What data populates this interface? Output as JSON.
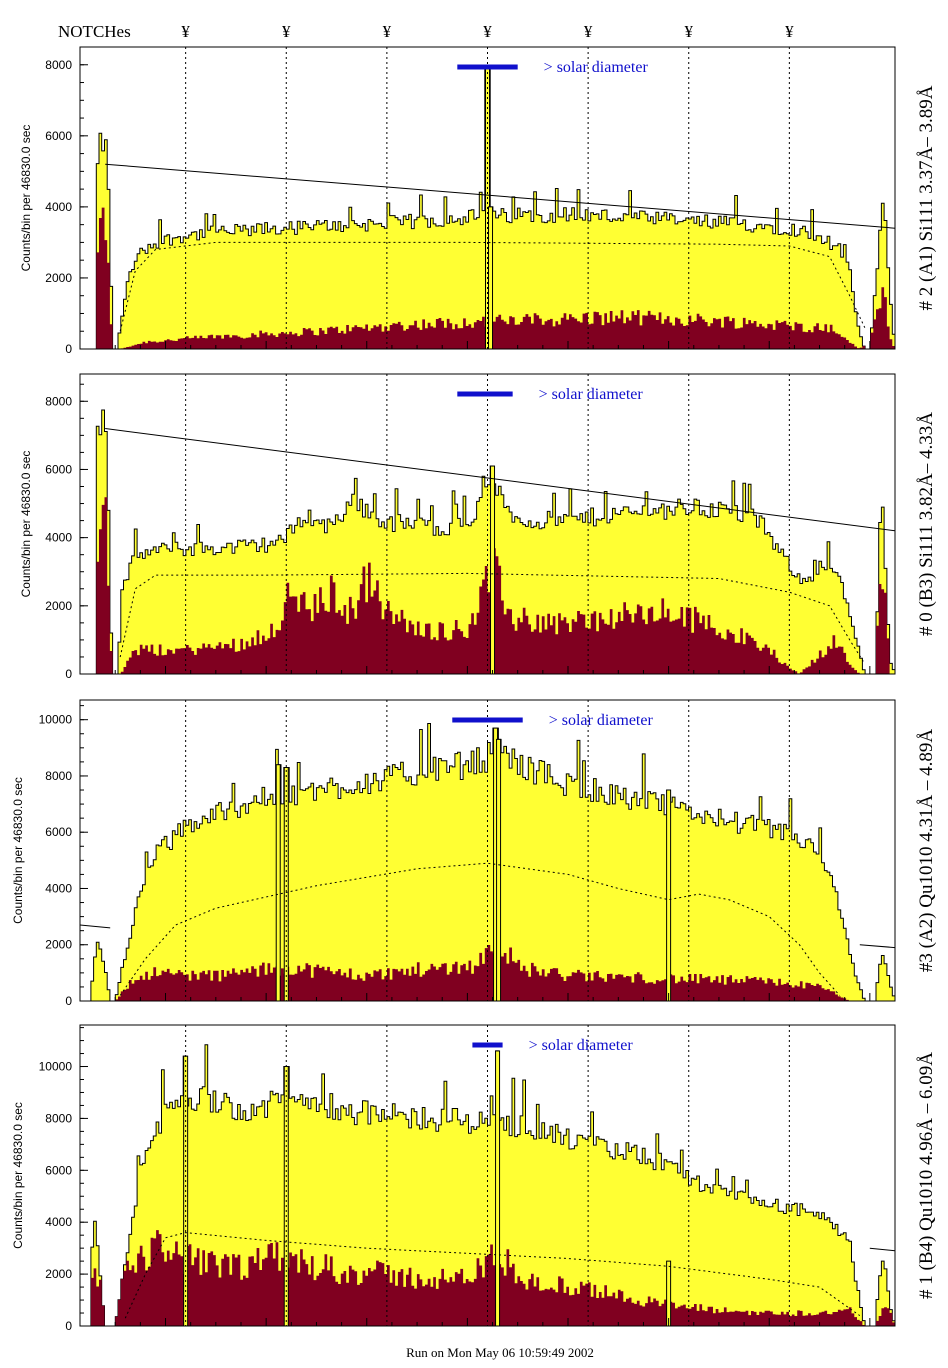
{
  "header": {
    "notches_label": "NOTCHes",
    "notch_symbol": "¥",
    "notch_positions": [
      1.2,
      2.2,
      3.2,
      4.2,
      5.2,
      6.2,
      7.2
    ]
  },
  "footer": {
    "run_text": "Run on Mon May 06 10:59:49 2002"
  },
  "colors": {
    "total": "#ffff33",
    "component": "#800020",
    "solar_bar": "#1010cc"
  },
  "chart_data": [
    {
      "type": "bar",
      "panel_label": "# 2 (A1) Si111  3.37Å– 3.89Å",
      "ylabel": "Counts/bin per  46830.0 sec",
      "solar_label": "> solar diameter",
      "solar_bar": [
        3.9,
        4.5
      ],
      "ylim": [
        0,
        8500
      ],
      "yticks": [
        0,
        2000,
        4000,
        6000,
        8000
      ],
      "xlim": [
        0.15,
        8.25
      ],
      "total_profile": [
        [
          0.15,
          0
        ],
        [
          0.3,
          0
        ],
        [
          0.32,
          5000
        ],
        [
          0.36,
          5900
        ],
        [
          0.42,
          5600
        ],
        [
          0.48,
          0
        ],
        [
          0.52,
          0
        ],
        [
          0.58,
          1200
        ],
        [
          0.65,
          2200
        ],
        [
          0.75,
          2700
        ],
        [
          0.9,
          3000
        ],
        [
          1.2,
          3200
        ],
        [
          1.6,
          3300
        ],
        [
          2.2,
          3400
        ],
        [
          2.9,
          3500
        ],
        [
          3.6,
          3600
        ],
        [
          3.9,
          3700
        ],
        [
          4.4,
          3750
        ],
        [
          5.0,
          3800
        ],
        [
          5.6,
          3700
        ],
        [
          6.2,
          3600
        ],
        [
          6.8,
          3500
        ],
        [
          7.2,
          3400
        ],
        [
          7.5,
          3200
        ],
        [
          7.7,
          2800
        ],
        [
          7.8,
          2200
        ],
        [
          7.85,
          1200
        ],
        [
          7.9,
          400
        ],
        [
          7.95,
          0
        ],
        [
          8.0,
          0
        ],
        [
          8.05,
          1500
        ],
        [
          8.1,
          3200
        ],
        [
          8.14,
          4400
        ],
        [
          8.2,
          1500
        ],
        [
          8.25,
          0
        ]
      ],
      "component_profile": [
        [
          0.15,
          0
        ],
        [
          0.3,
          0
        ],
        [
          0.33,
          3000
        ],
        [
          0.37,
          3700
        ],
        [
          0.42,
          3200
        ],
        [
          0.47,
          0
        ],
        [
          0.55,
          0
        ],
        [
          0.8,
          200
        ],
        [
          1.5,
          350
        ],
        [
          2.5,
          500
        ],
        [
          3.5,
          700
        ],
        [
          4.5,
          800
        ],
        [
          5.5,
          900
        ],
        [
          6.5,
          800
        ],
        [
          7.2,
          650
        ],
        [
          7.6,
          600
        ],
        [
          7.75,
          300
        ],
        [
          7.9,
          0
        ],
        [
          8.02,
          400
        ],
        [
          8.1,
          1500
        ],
        [
          8.15,
          1800
        ],
        [
          8.2,
          300
        ],
        [
          8.25,
          0
        ]
      ],
      "spikes": [
        [
          4.2,
          7900
        ],
        [
          4.23,
          4000
        ]
      ],
      "fit_line": [
        [
          0.4,
          5200
        ],
        [
          8.25,
          3400
        ]
      ],
      "model_profile": [
        [
          0.55,
          500
        ],
        [
          0.7,
          2200
        ],
        [
          0.9,
          2800
        ],
        [
          1.5,
          3000
        ],
        [
          4.0,
          3000
        ],
        [
          6.5,
          2950
        ],
        [
          7.2,
          2900
        ],
        [
          7.6,
          2600
        ],
        [
          7.8,
          1500
        ],
        [
          7.95,
          600
        ]
      ]
    },
    {
      "type": "bar",
      "panel_label": "# 0 (B3) Si111  3.82Å– 4.33Å",
      "ylabel": "Counts/bin per  46830.0 sec",
      "solar_label": "> solar diameter",
      "solar_bar": [
        3.9,
        4.45
      ],
      "ylim": [
        0,
        8800
      ],
      "yticks": [
        0,
        2000,
        4000,
        6000,
        8000
      ],
      "xlim": [
        0.15,
        8.25
      ],
      "total_profile": [
        [
          0.15,
          0
        ],
        [
          0.3,
          0
        ],
        [
          0.32,
          6000
        ],
        [
          0.37,
          8000
        ],
        [
          0.42,
          6500
        ],
        [
          0.47,
          0
        ],
        [
          0.52,
          0
        ],
        [
          0.58,
          2500
        ],
        [
          0.7,
          3500
        ],
        [
          1.0,
          3650
        ],
        [
          1.6,
          3700
        ],
        [
          2.0,
          3800
        ],
        [
          2.2,
          4000
        ],
        [
          2.4,
          4700
        ],
        [
          2.6,
          4300
        ],
        [
          2.9,
          5100
        ],
        [
          3.1,
          4500
        ],
        [
          3.4,
          4400
        ],
        [
          3.7,
          4300
        ],
        [
          4.0,
          4400
        ],
        [
          4.25,
          5500
        ],
        [
          4.5,
          4500
        ],
        [
          5.0,
          4500
        ],
        [
          5.5,
          4700
        ],
        [
          5.9,
          4800
        ],
        [
          6.2,
          4900
        ],
        [
          6.6,
          4800
        ],
        [
          6.9,
          4500
        ],
        [
          7.1,
          3600
        ],
        [
          7.3,
          2800
        ],
        [
          7.5,
          2900
        ],
        [
          7.6,
          3200
        ],
        [
          7.7,
          2800
        ],
        [
          7.85,
          1200
        ],
        [
          7.95,
          0
        ],
        [
          8.05,
          0
        ],
        [
          8.12,
          5200
        ],
        [
          8.16,
          3000
        ],
        [
          8.2,
          400
        ],
        [
          8.25,
          0
        ]
      ],
      "component_profile": [
        [
          0.15,
          0
        ],
        [
          0.3,
          0
        ],
        [
          0.33,
          4800
        ],
        [
          0.37,
          5600
        ],
        [
          0.42,
          4500
        ],
        [
          0.47,
          0
        ],
        [
          0.55,
          0
        ],
        [
          0.7,
          700
        ],
        [
          1.2,
          700
        ],
        [
          1.8,
          900
        ],
        [
          2.1,
          1400
        ],
        [
          2.25,
          2400
        ],
        [
          2.45,
          1800
        ],
        [
          2.65,
          2400
        ],
        [
          2.85,
          1800
        ],
        [
          3.0,
          2800
        ],
        [
          3.2,
          1800
        ],
        [
          3.5,
          1300
        ],
        [
          4.0,
          1300
        ],
        [
          4.25,
          3100
        ],
        [
          4.45,
          1600
        ],
        [
          5.0,
          1500
        ],
        [
          5.6,
          1700
        ],
        [
          6.0,
          1800
        ],
        [
          6.5,
          1400
        ],
        [
          7.0,
          700
        ],
        [
          7.2,
          200
        ],
        [
          7.3,
          0
        ],
        [
          7.45,
          400
        ],
        [
          7.65,
          1000
        ],
        [
          7.8,
          300
        ],
        [
          7.9,
          0
        ],
        [
          8.05,
          0
        ],
        [
          8.12,
          3300
        ],
        [
          8.16,
          2000
        ],
        [
          8.2,
          0
        ],
        [
          8.25,
          0
        ]
      ],
      "spikes": [
        [
          4.25,
          6100
        ]
      ],
      "fit_line": [
        [
          0.4,
          7200
        ],
        [
          8.25,
          4200
        ]
      ],
      "model_profile": [
        [
          0.55,
          500
        ],
        [
          0.7,
          2500
        ],
        [
          0.9,
          2900
        ],
        [
          2.0,
          2900
        ],
        [
          4.0,
          2950
        ],
        [
          6.5,
          2800
        ],
        [
          7.2,
          2400
        ],
        [
          7.6,
          2000
        ],
        [
          7.8,
          1000
        ],
        [
          7.95,
          300
        ]
      ]
    },
    {
      "type": "bar",
      "panel_label": "#3 (A2) Qu1010  4.31Å – 4.89Å",
      "ylabel": "Counts/bin per  46830.0 sec",
      "solar_label": "> solar diameter",
      "solar_bar": [
        3.85,
        4.55
      ],
      "ylim": [
        0,
        10700
      ],
      "yticks": [
        0,
        2000,
        4000,
        6000,
        8000,
        10000
      ],
      "xlim": [
        0.15,
        8.25
      ],
      "total_profile": [
        [
          0.15,
          0
        ],
        [
          0.25,
          0
        ],
        [
          0.3,
          1600
        ],
        [
          0.34,
          1900
        ],
        [
          0.4,
          1200
        ],
        [
          0.45,
          0
        ],
        [
          0.5,
          0
        ],
        [
          0.6,
          1500
        ],
        [
          0.75,
          4000
        ],
        [
          0.9,
          5200
        ],
        [
          1.2,
          6200
        ],
        [
          1.6,
          6800
        ],
        [
          2.0,
          7200
        ],
        [
          2.4,
          7400
        ],
        [
          2.8,
          7700
        ],
        [
          3.2,
          7900
        ],
        [
          3.6,
          8200
        ],
        [
          4.0,
          8400
        ],
        [
          4.3,
          8800
        ],
        [
          4.6,
          8300
        ],
        [
          5.0,
          7700
        ],
        [
          5.5,
          7300
        ],
        [
          6.0,
          6900
        ],
        [
          6.5,
          6500
        ],
        [
          7.0,
          6100
        ],
        [
          7.3,
          5800
        ],
        [
          7.5,
          5200
        ],
        [
          7.65,
          4000
        ],
        [
          7.75,
          2500
        ],
        [
          7.85,
          1000
        ],
        [
          7.95,
          0
        ],
        [
          8.05,
          0
        ],
        [
          8.12,
          1800
        ],
        [
          8.18,
          900
        ],
        [
          8.25,
          0
        ]
      ],
      "component_profile": [
        [
          0.15,
          0
        ],
        [
          0.5,
          0
        ],
        [
          0.6,
          500
        ],
        [
          0.8,
          1000
        ],
        [
          1.5,
          900
        ],
        [
          2.2,
          1200
        ],
        [
          3.0,
          900
        ],
        [
          3.5,
          1100
        ],
        [
          4.1,
          1300
        ],
        [
          4.3,
          2200
        ],
        [
          4.5,
          1200
        ],
        [
          5.0,
          900
        ],
        [
          6.0,
          800
        ],
        [
          7.0,
          700
        ],
        [
          7.5,
          500
        ],
        [
          7.7,
          200
        ],
        [
          7.8,
          0
        ],
        [
          8.25,
          0
        ]
      ],
      "spikes": [
        [
          4.28,
          9700
        ],
        [
          4.31,
          9300
        ],
        [
          2.12,
          8400
        ],
        [
          2.2,
          8300
        ],
        [
          6.0,
          7500
        ]
      ],
      "fit_line": [
        [
          0.15,
          2700
        ],
        [
          0.45,
          2600
        ]
      ],
      "model_profile": [
        [
          0.55,
          200
        ],
        [
          0.8,
          1500
        ],
        [
          1.1,
          2700
        ],
        [
          1.5,
          3300
        ],
        [
          2.5,
          4100
        ],
        [
          3.5,
          4700
        ],
        [
          4.2,
          4900
        ],
        [
          5.0,
          4500
        ],
        [
          5.5,
          4000
        ],
        [
          6.0,
          3600
        ],
        [
          6.3,
          3800
        ],
        [
          6.6,
          3600
        ],
        [
          7.0,
          3000
        ],
        [
          7.3,
          2000
        ],
        [
          7.5,
          1000
        ],
        [
          7.7,
          200
        ]
      ],
      "extra_line": [
        [
          7.9,
          2000
        ],
        [
          8.25,
          1900
        ]
      ]
    },
    {
      "type": "bar",
      "panel_label": "# 1 (B4) Qu1010 4.96Å – 6.09Å",
      "ylabel": "Counts/bin per  46830.0 sec",
      "solar_label": "> solar diameter",
      "solar_bar": [
        4.05,
        4.35
      ],
      "ylim": [
        0,
        11600
      ],
      "yticks": [
        0,
        2000,
        4000,
        6000,
        8000,
        10000
      ],
      "xlim": [
        0.15,
        8.25
      ],
      "total_profile": [
        [
          0.15,
          0
        ],
        [
          0.25,
          0
        ],
        [
          0.27,
          3000
        ],
        [
          0.3,
          3900
        ],
        [
          0.35,
          2000
        ],
        [
          0.4,
          0
        ],
        [
          0.5,
          0
        ],
        [
          0.6,
          2500
        ],
        [
          0.75,
          5800
        ],
        [
          0.9,
          7600
        ],
        [
          1.1,
          8600
        ],
        [
          1.3,
          8800
        ],
        [
          1.6,
          8700
        ],
        [
          1.8,
          8200
        ],
        [
          2.1,
          8600
        ],
        [
          2.5,
          8700
        ],
        [
          2.8,
          8300
        ],
        [
          3.2,
          8100
        ],
        [
          3.6,
          8000
        ],
        [
          4.0,
          7900
        ],
        [
          4.3,
          7800
        ],
        [
          4.6,
          7700
        ],
        [
          5.0,
          7200
        ],
        [
          5.3,
          6900
        ],
        [
          5.6,
          6700
        ],
        [
          6.0,
          6200
        ],
        [
          6.3,
          5500
        ],
        [
          6.6,
          5000
        ],
        [
          7.0,
          4700
        ],
        [
          7.4,
          4400
        ],
        [
          7.6,
          4000
        ],
        [
          7.8,
          3200
        ],
        [
          7.85,
          2000
        ],
        [
          7.95,
          0
        ],
        [
          8.05,
          0
        ],
        [
          8.1,
          2000
        ],
        [
          8.14,
          2800
        ],
        [
          8.2,
          800
        ],
        [
          8.25,
          0
        ]
      ],
      "component_profile": [
        [
          0.15,
          0
        ],
        [
          0.2,
          1200
        ],
        [
          0.3,
          2000
        ],
        [
          0.4,
          1500
        ],
        [
          0.6,
          2000
        ],
        [
          0.8,
          2800
        ],
        [
          1.0,
          3200
        ],
        [
          1.2,
          2600
        ],
        [
          1.5,
          2300
        ],
        [
          1.8,
          2200
        ],
        [
          2.1,
          2800
        ],
        [
          2.4,
          2400
        ],
        [
          2.8,
          2100
        ],
        [
          3.2,
          2000
        ],
        [
          3.6,
          1800
        ],
        [
          4.0,
          1800
        ],
        [
          4.3,
          2800
        ],
        [
          4.6,
          1700
        ],
        [
          5.0,
          1500
        ],
        [
          5.5,
          1200
        ],
        [
          6.0,
          800
        ],
        [
          6.5,
          600
        ],
        [
          7.0,
          500
        ],
        [
          7.5,
          500
        ],
        [
          7.8,
          600
        ],
        [
          7.95,
          0
        ],
        [
          8.05,
          0
        ],
        [
          8.15,
          1000
        ],
        [
          8.25,
          0
        ]
      ],
      "spikes": [
        [
          4.3,
          10600
        ],
        [
          1.2,
          10400
        ],
        [
          2.2,
          10000
        ],
        [
          6.0,
          2500
        ]
      ],
      "fit_line": [
        [
          8.0,
          3000
        ],
        [
          8.25,
          2900
        ]
      ],
      "model_profile": [
        [
          0.6,
          300
        ],
        [
          0.8,
          2000
        ],
        [
          1.0,
          3400
        ],
        [
          1.2,
          3600
        ],
        [
          2.0,
          3300
        ],
        [
          3.0,
          3000
        ],
        [
          4.0,
          2800
        ],
        [
          5.0,
          2600
        ],
        [
          6.0,
          2300
        ],
        [
          7.0,
          1800
        ],
        [
          7.5,
          1500
        ],
        [
          7.9,
          400
        ]
      ]
    }
  ]
}
